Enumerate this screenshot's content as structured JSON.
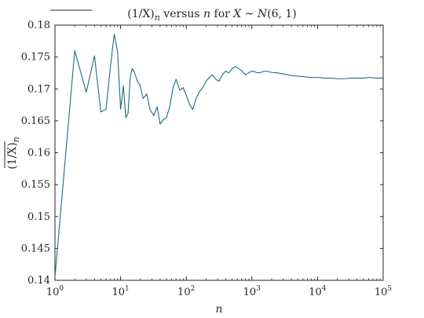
{
  "chart_data": {
    "type": "line",
    "title": {
      "p1": "(1/X)",
      "p2": "n",
      "p3": " versus ",
      "p4": "n",
      "p5": " for ",
      "p6": "X",
      "p7": " ~ ",
      "p8": "N",
      "p9": "(6, 1)"
    },
    "xlabel": "n",
    "ylabel": {
      "base": "(1/X)",
      "sub": "n"
    },
    "x_scale": "log",
    "xlim": [
      1,
      100000
    ],
    "ylim": [
      0.14,
      0.18
    ],
    "grid": false,
    "x_ticks": [
      {
        "value": 1,
        "base": "10",
        "exp": "0"
      },
      {
        "value": 10,
        "base": "10",
        "exp": "1"
      },
      {
        "value": 100,
        "base": "10",
        "exp": "2"
      },
      {
        "value": 1000,
        "base": "10",
        "exp": "3"
      },
      {
        "value": 10000,
        "base": "10",
        "exp": "4"
      },
      {
        "value": 100000,
        "base": "10",
        "exp": "5"
      }
    ],
    "y_ticks": [
      {
        "value": 0.14,
        "label": "0.14"
      },
      {
        "value": 0.145,
        "label": "0.145"
      },
      {
        "value": 0.15,
        "label": "0.15"
      },
      {
        "value": 0.155,
        "label": "0.155"
      },
      {
        "value": 0.16,
        "label": "0.16"
      },
      {
        "value": 0.165,
        "label": "0.165"
      },
      {
        "value": 0.17,
        "label": "0.17"
      },
      {
        "value": 0.175,
        "label": "0.175"
      },
      {
        "value": 0.18,
        "label": "0.18"
      }
    ],
    "series": [
      {
        "color": "#1b6f77",
        "x": [
          1,
          2,
          3,
          4,
          5,
          6,
          7,
          8,
          9,
          10,
          11,
          12,
          13,
          14,
          15,
          16,
          18,
          20,
          22,
          25,
          28,
          32,
          36,
          40,
          45,
          50,
          56,
          63,
          70,
          80,
          90,
          100,
          113,
          126,
          141,
          158,
          178,
          200,
          224,
          251,
          282,
          316,
          355,
          398,
          447,
          501,
          562,
          631,
          708,
          794,
          891,
          1000,
          1259,
          1585,
          1995,
          2512,
          3162,
          3981,
          5012,
          6310,
          7943,
          10000,
          12589,
          15849,
          19953,
          25119,
          31623,
          39811,
          50119,
          63096,
          79433,
          100000
        ],
        "values": [
          0.1405,
          0.176,
          0.1695,
          0.1752,
          0.1664,
          0.1668,
          0.1735,
          0.1786,
          0.1758,
          0.1668,
          0.1705,
          0.1655,
          0.1662,
          0.1718,
          0.1732,
          0.1728,
          0.1712,
          0.1705,
          0.1685,
          0.1692,
          0.1668,
          0.1658,
          0.1672,
          0.1645,
          0.1652,
          0.1655,
          0.1672,
          0.1702,
          0.1715,
          0.1698,
          0.1702,
          0.169,
          0.1675,
          0.1668,
          0.1685,
          0.1695,
          0.1702,
          0.1712,
          0.1718,
          0.1722,
          0.1715,
          0.1712,
          0.1722,
          0.1728,
          0.1725,
          0.1732,
          0.1735,
          0.1732,
          0.1728,
          0.1722,
          0.1725,
          0.1728,
          0.1725,
          0.1728,
          0.1726,
          0.1725,
          0.1723,
          0.1721,
          0.172,
          0.1719,
          0.1718,
          0.1718,
          0.1717,
          0.1717,
          0.1716,
          0.1716,
          0.1717,
          0.1717,
          0.1717,
          0.1718,
          0.1717,
          0.1717
        ]
      }
    ]
  }
}
